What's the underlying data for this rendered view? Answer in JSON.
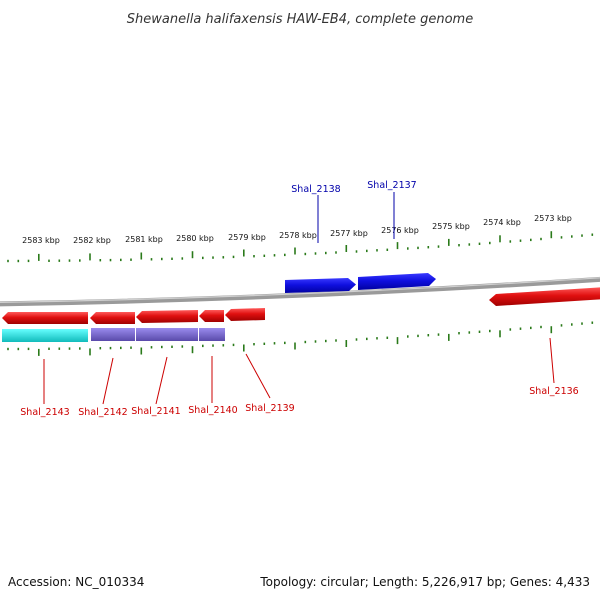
{
  "title": "Shewanella halifaxensis HAW-EB4, complete genome",
  "footer": {
    "accession": "Accession: NC_010334",
    "stats": "Topology: circular; Length: 5,226,917 bp; Genes: 4,433"
  },
  "scale": {
    "tick_labels": [
      "2583 kbp",
      "2582 kbp",
      "2581 kbp",
      "2580 kbp",
      "2579 kbp",
      "2578 kbp",
      "2577 kbp",
      "2576 kbp",
      "2575 kbp",
      "2574 kbp",
      "2573 kbp"
    ]
  },
  "genes_top": [
    {
      "name": "Shal_2138",
      "strand": "+",
      "color": "#1010e0"
    },
    {
      "name": "Shal_2137",
      "strand": "+",
      "color": "#1010e0"
    }
  ],
  "genes_bottom": [
    {
      "name": "Shal_2143",
      "strand": "-",
      "color": "#e01010"
    },
    {
      "name": "Shal_2142",
      "strand": "-",
      "color": "#e01010"
    },
    {
      "name": "Shal_2141",
      "strand": "-",
      "color": "#e01010"
    },
    {
      "name": "Shal_2140",
      "strand": "-",
      "color": "#e01010"
    },
    {
      "name": "Shal_2139",
      "strand": "-",
      "color": "#e01010"
    },
    {
      "name": "Shal_2136",
      "strand": "-",
      "color": "#e01010"
    }
  ],
  "colors": {
    "backbone": "#808080",
    "ticks": "#2a7a1a",
    "label_top": "#0000aa",
    "label_bottom": "#cc0000",
    "operon_cyan": "#22dddd",
    "operon_purple": "#7766cc"
  }
}
